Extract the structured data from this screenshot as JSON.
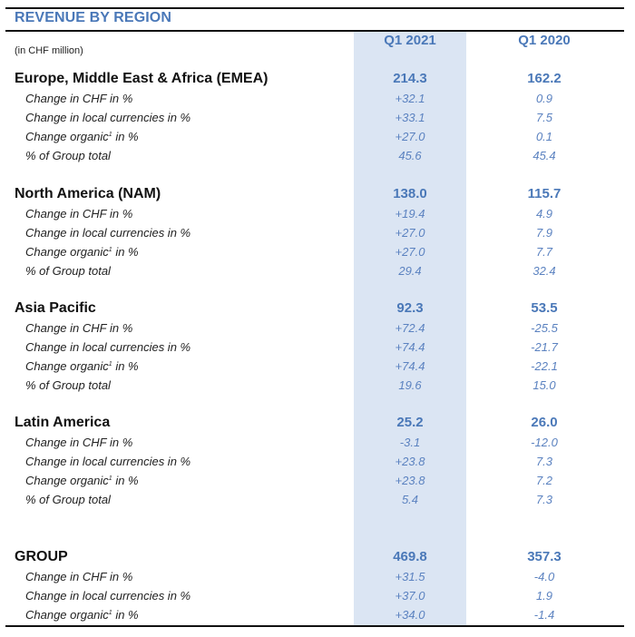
{
  "title": "REVENUE BY REGION",
  "unit": "(in CHF million)",
  "columns": [
    "Q1 2021",
    "Q1 2020"
  ],
  "sections": [
    {
      "name": "Europe, Middle East & Africa (EMEA)",
      "values": [
        "214.3",
        "162.2"
      ],
      "rows": [
        {
          "label": "Change in CHF in %",
          "values": [
            "+32.1",
            "0.9"
          ]
        },
        {
          "label": "Change in local currencies in %",
          "values": [
            "+33.1",
            "7.5"
          ]
        },
        {
          "label": "Change organic",
          "footnote": "1",
          "label_suffix": " in %",
          "values": [
            "+27.0",
            "0.1"
          ]
        },
        {
          "label": "% of Group total",
          "values": [
            "45.6",
            "45.4"
          ]
        }
      ]
    },
    {
      "name": "North America (NAM)",
      "values": [
        "138.0",
        "115.7"
      ],
      "rows": [
        {
          "label": "Change in CHF in %",
          "values": [
            "+19.4",
            "4.9"
          ]
        },
        {
          "label": "Change in local currencies in %",
          "values": [
            "+27.0",
            "7.9"
          ]
        },
        {
          "label": "Change organic",
          "footnote": "1",
          "label_suffix": " in %",
          "values": [
            "+27.0",
            "7.7"
          ]
        },
        {
          "label": "% of Group total",
          "values": [
            "29.4",
            "32.4"
          ]
        }
      ]
    },
    {
      "name": "Asia Pacific",
      "values": [
        "92.3",
        "53.5"
      ],
      "rows": [
        {
          "label": "Change in CHF in %",
          "values": [
            "+72.4",
            "-25.5"
          ]
        },
        {
          "label": "Change in local currencies in %",
          "values": [
            "+74.4",
            "-21.7"
          ]
        },
        {
          "label": "Change organic",
          "footnote": "1",
          "label_suffix": " in %",
          "values": [
            "+74.4",
            "-22.1"
          ]
        },
        {
          "label": "% of Group total",
          "values": [
            "19.6",
            "15.0"
          ]
        }
      ]
    },
    {
      "name": "Latin America",
      "values": [
        "25.2",
        "26.0"
      ],
      "rows": [
        {
          "label": "Change in CHF in %",
          "values": [
            "-3.1",
            "-12.0"
          ]
        },
        {
          "label": "Change in local currencies in %",
          "values": [
            "+23.8",
            "7.3"
          ]
        },
        {
          "label": "Change organic",
          "footnote": "1",
          "label_suffix": " in %",
          "values": [
            "+23.8",
            "7.2"
          ]
        },
        {
          "label": "% of Group total",
          "values": [
            "5.4",
            "7.3"
          ]
        }
      ]
    },
    {
      "name": "GROUP",
      "values": [
        "469.8",
        "357.3"
      ],
      "rows": [
        {
          "label": "Change in CHF in %",
          "values": [
            "+31.5",
            "-4.0"
          ]
        },
        {
          "label": "Change in local currencies in %",
          "values": [
            "+37.0",
            "1.9"
          ]
        },
        {
          "label": "Change organic",
          "footnote": "1",
          "label_suffix": " in %",
          "values": [
            "+34.0",
            "-1.4"
          ]
        }
      ]
    }
  ],
  "colors": {
    "accent": "#4a78b8",
    "highlight": "#dbe5f3",
    "sub_value": "#5b82c0",
    "text": "#111111"
  }
}
